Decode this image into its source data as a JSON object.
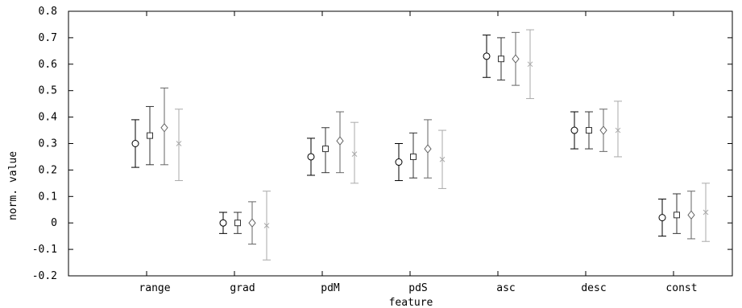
{
  "chart_data": {
    "type": "scatter",
    "subtype": "errorbar",
    "title": "",
    "xlabel": "feature",
    "ylabel": "norm. value",
    "categories": [
      "range",
      "grad",
      "pdM",
      "pdS",
      "asc",
      "desc",
      "const"
    ],
    "ylim": [
      -0.2,
      0.8
    ],
    "yticks": [
      -0.2,
      -0.1,
      0,
      0.1,
      0.2,
      0.3,
      0.4,
      0.5,
      0.6,
      0.7,
      0.8
    ],
    "ytick_labels": [
      "-0.2",
      "-0.1",
      "0",
      "0.1",
      "0.2",
      "0.3",
      "0.4",
      "0.5",
      "0.6",
      "0.7",
      "0.8"
    ],
    "grid": false,
    "legend": "none",
    "series": [
      {
        "marker": "circle",
        "color": "#000000",
        "values": [
          0.3,
          0.0,
          0.25,
          0.23,
          0.63,
          0.35,
          0.02
        ],
        "err_low": [
          0.21,
          -0.04,
          0.18,
          0.16,
          0.55,
          0.28,
          -0.05
        ],
        "err_high": [
          0.39,
          0.04,
          0.32,
          0.3,
          0.71,
          0.42,
          0.09
        ]
      },
      {
        "marker": "square",
        "color": "#333333",
        "values": [
          0.33,
          0.0,
          0.28,
          0.25,
          0.62,
          0.35,
          0.03
        ],
        "err_low": [
          0.22,
          -0.04,
          0.19,
          0.17,
          0.54,
          0.28,
          -0.04
        ],
        "err_high": [
          0.44,
          0.04,
          0.36,
          0.34,
          0.7,
          0.42,
          0.11
        ]
      },
      {
        "marker": "diamond",
        "color": "#666666",
        "values": [
          0.36,
          0.0,
          0.31,
          0.28,
          0.62,
          0.35,
          0.03
        ],
        "err_low": [
          0.22,
          -0.08,
          0.19,
          0.17,
          0.52,
          0.27,
          -0.06
        ],
        "err_high": [
          0.51,
          0.08,
          0.42,
          0.39,
          0.72,
          0.43,
          0.12
        ]
      },
      {
        "marker": "x",
        "color": "#aaaaaa",
        "values": [
          0.3,
          -0.01,
          0.26,
          0.24,
          0.6,
          0.35,
          0.04
        ],
        "err_low": [
          0.16,
          -0.14,
          0.15,
          0.13,
          0.47,
          0.25,
          -0.07
        ],
        "err_high": [
          0.43,
          0.12,
          0.38,
          0.35,
          0.73,
          0.46,
          0.15
        ]
      }
    ]
  }
}
